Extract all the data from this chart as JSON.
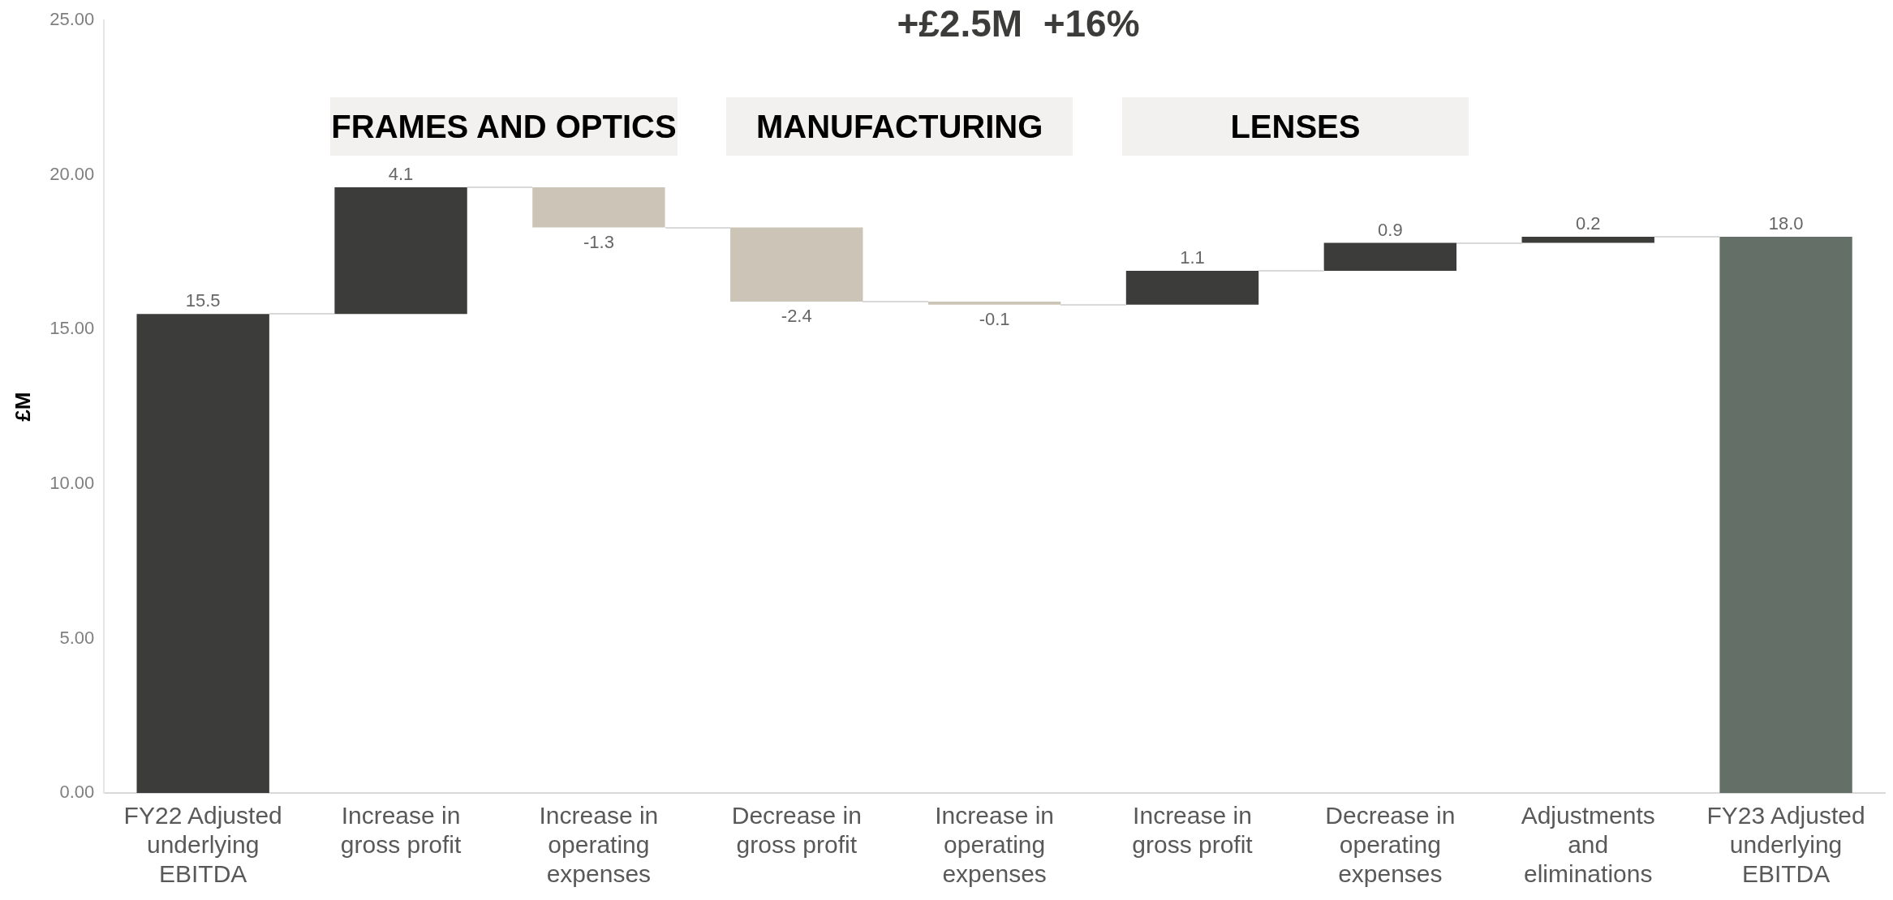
{
  "chart_data": {
    "type": "bar",
    "title": "+£2.5M  +16%",
    "ylabel": "£M",
    "categories": [
      "FY22 Adjusted underlying EBITDA",
      "Increase in gross profit",
      "Increase in operating expenses",
      "Decrease in gross profit",
      "Increase in operating expenses",
      "Increase in gross profit",
      "Decrease in operating expenses",
      "Adjustments and eliminations",
      "FY23 Adjusted underlying EBITDA"
    ],
    "values": [
      15.5,
      4.1,
      -1.3,
      -2.4,
      -0.1,
      1.1,
      0.9,
      0.2,
      18.0
    ],
    "base": [
      0,
      15.5,
      19.6,
      18.3,
      15.9,
      15.8,
      16.9,
      17.8,
      0
    ],
    "colors": [
      "#3c3c3a",
      "#3c3c3a",
      "#ccc5b7",
      "#ccc5b7",
      "#ccc5b7",
      "#3c3c3a",
      "#3c3c3a",
      "#3c3c3a",
      "#647067"
    ],
    "value_labels": [
      "15.5",
      "4.1",
      "-1.3",
      "-2.4",
      "-0.1",
      "1.1",
      "0.9",
      "0.2",
      "18.0"
    ],
    "annotations": [
      "FRAMES AND OPTICS",
      "MANUFACTURING",
      "LENSES"
    ],
    "ylim": [
      0,
      25
    ],
    "yticks": [
      {
        "value": 0,
        "label": "0.00"
      },
      {
        "value": 5,
        "label": "5.00"
      },
      {
        "value": 10,
        "label": "10.00"
      },
      {
        "value": 15,
        "label": "15.00"
      },
      {
        "value": 20,
        "label": "20.00"
      },
      {
        "value": 25,
        "label": "25.00"
      }
    ],
    "grid": false,
    "legend": false
  }
}
